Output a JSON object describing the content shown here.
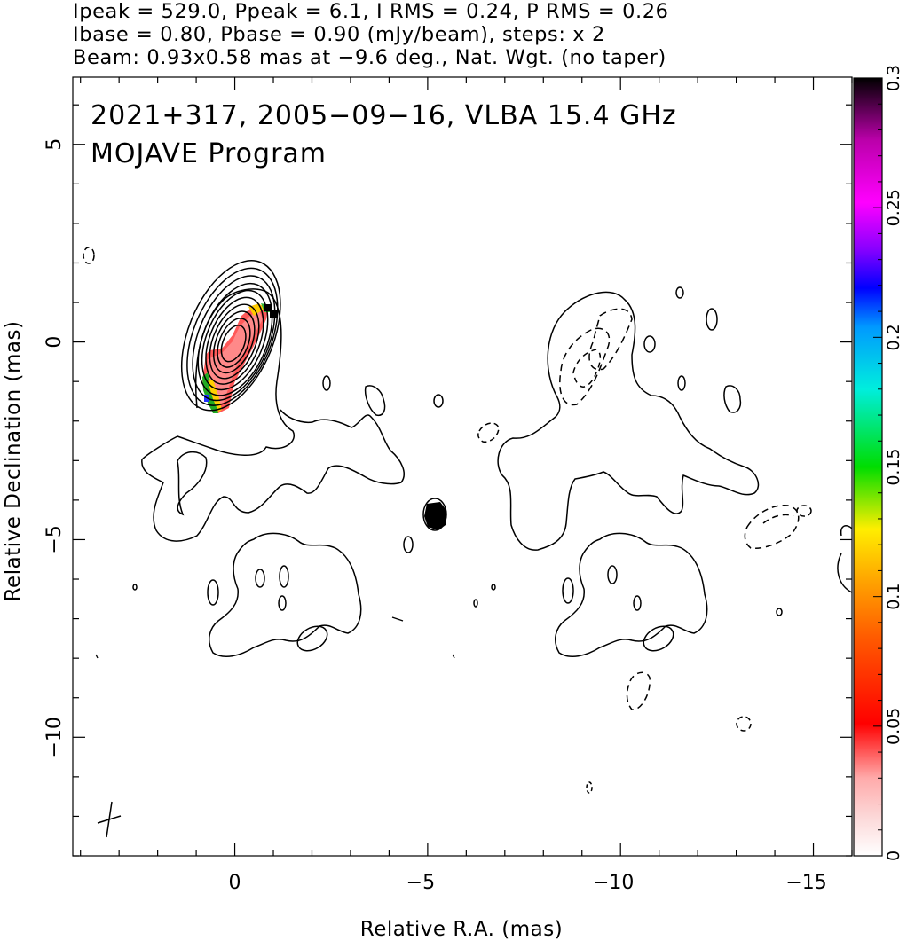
{
  "header": {
    "line1": "Ipeak = 529.0, Ppeak = 6.1, I RMS = 0.24, P RMS = 0.26",
    "line2": "Ibase = 0.80, Pbase = 0.90 (mJy/beam), steps: x 2",
    "line3": "Beam: 0.93x0.58 mas at −9.6 deg., Nat. Wgt. (no taper)"
  },
  "chart_data": {
    "type": "contour",
    "annotation_line1": "2021+317, 2005−09−16, VLBA 15.4 GHz",
    "annotation_line2": "MOJAVE Program",
    "xlabel": "Relative R.A. (mas)",
    "ylabel": "Relative Declination (mas)",
    "xlim": [
      4.2,
      -16.0
    ],
    "ylim": [
      -13.0,
      6.7
    ],
    "x_ticks": [
      {
        "value": 0,
        "label": "0"
      },
      {
        "value": -5,
        "label": "−5"
      },
      {
        "value": -10,
        "label": "−10"
      },
      {
        "value": -15,
        "label": "−15"
      }
    ],
    "y_ticks": [
      {
        "value": 5,
        "label": "5"
      },
      {
        "value": 0,
        "label": "0"
      },
      {
        "value": -5,
        "label": "−5"
      },
      {
        "value": -10,
        "label": "−10"
      }
    ],
    "colorbar": {
      "range": [
        0,
        0.3
      ],
      "ticks": [
        {
          "value": 0,
          "label": "0"
        },
        {
          "value": 0.05,
          "label": "0.05"
        },
        {
          "value": 0.1,
          "label": "0.1"
        },
        {
          "value": 0.15,
          "label": "0.15"
        },
        {
          "value": 0.2,
          "label": "0.2"
        },
        {
          "value": 0.25,
          "label": "0.25"
        },
        {
          "value": 0.3,
          "label": "0.3"
        }
      ]
    },
    "core": {
      "x": 0.2,
      "y": -0.2,
      "n_contours": 10
    },
    "beam": {
      "major": 0.93,
      "minor": 0.58,
      "pa": -9.6
    }
  }
}
